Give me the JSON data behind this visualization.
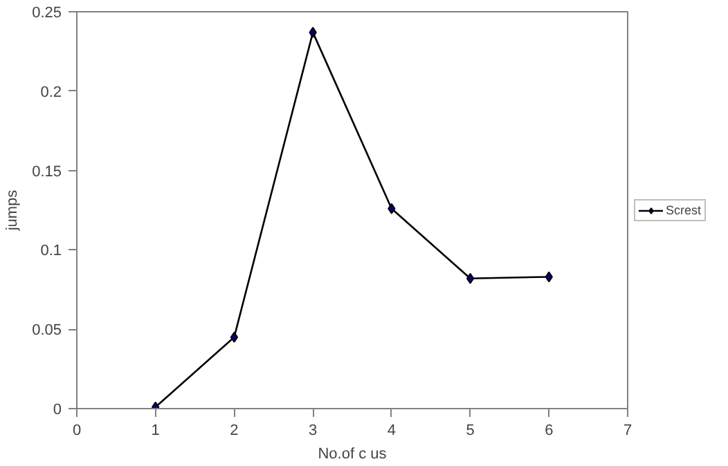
{
  "chart_data": {
    "type": "line",
    "xlabel": "No.of c us",
    "ylabel": "jumps",
    "x": [
      1,
      2,
      3,
      4,
      5,
      6
    ],
    "series": [
      {
        "name": "Screst",
        "color": "#000000",
        "values": [
          0.001,
          0.045,
          0.237,
          0.126,
          0.082,
          0.083
        ]
      }
    ],
    "xlim": [
      0,
      7
    ],
    "xticks": [
      0,
      1,
      2,
      3,
      4,
      5,
      6,
      7
    ],
    "ylim": [
      0,
      0.25
    ],
    "yticks": [
      0,
      0.05,
      0.1,
      0.15,
      0.2,
      0.25
    ],
    "grid": false,
    "legend": "right",
    "marker": "diamond",
    "line_style": "solid"
  }
}
